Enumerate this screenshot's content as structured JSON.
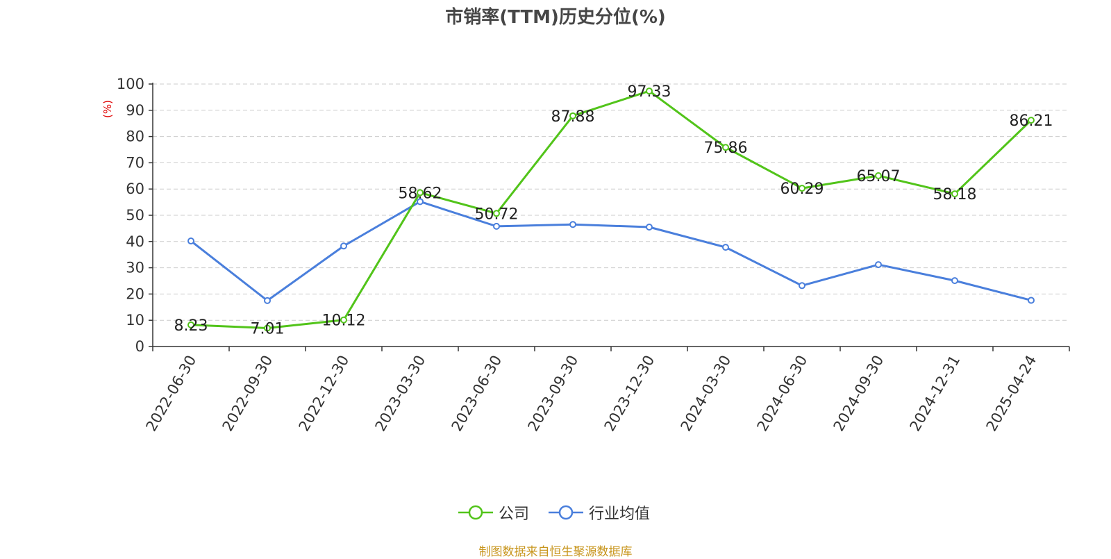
{
  "chart_data": {
    "type": "line",
    "title": "市销率(TTM)历史分位(%)",
    "ylabel": "(%)",
    "ylim": [
      0,
      100
    ],
    "yticks": [
      0,
      10,
      20,
      30,
      40,
      50,
      60,
      70,
      80,
      90,
      100
    ],
    "categories": [
      "2022-06-30",
      "2022-09-30",
      "2022-12-30",
      "2023-03-30",
      "2023-06-30",
      "2023-09-30",
      "2023-12-30",
      "2024-03-30",
      "2024-06-30",
      "2024-09-30",
      "2024-12-31",
      "2025-04-24"
    ],
    "grid": true,
    "legend_position": "bottom-center",
    "series": [
      {
        "name": "公司",
        "color": "#52c41a",
        "values": [
          8.23,
          7.01,
          10.12,
          58.62,
          50.72,
          87.88,
          97.33,
          75.86,
          60.29,
          65.07,
          58.18,
          86.21
        ],
        "data_labels": [
          "8.23",
          "7.01",
          "10.12",
          "58.62",
          "50.72",
          "87.88",
          "97.33",
          "75.86",
          "60.29",
          "65.07",
          "58.18",
          "86.21"
        ]
      },
      {
        "name": "行业均值",
        "color": "#4a7fdc",
        "values": [
          40.2,
          17.5,
          38.3,
          55.2,
          45.8,
          46.5,
          45.5,
          37.8,
          23.2,
          31.2,
          25.1,
          17.6
        ]
      }
    ]
  },
  "source": "制图数据来自恒生聚源数据库"
}
